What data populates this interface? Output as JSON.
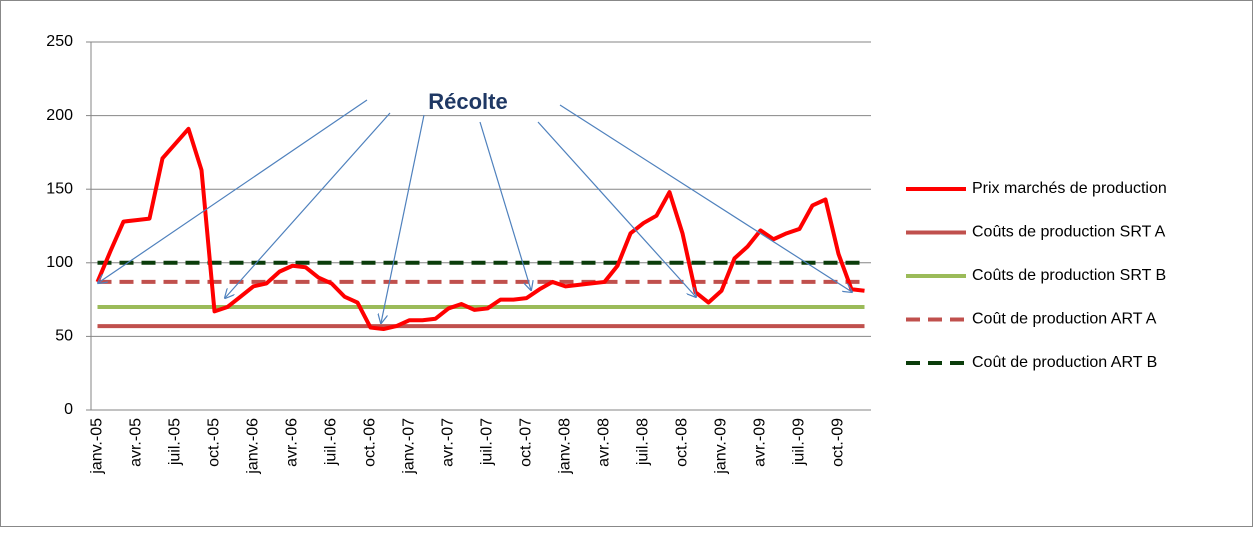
{
  "chart_data": {
    "type": "line",
    "annotation": "Récolte",
    "categories": [
      "janv.-05",
      null,
      null,
      "avr.-05",
      null,
      null,
      "juil.-05",
      null,
      null,
      "oct.-05",
      null,
      null,
      "janv.-06",
      null,
      null,
      "avr.-06",
      null,
      null,
      "juil.-06",
      null,
      null,
      "oct.-06",
      null,
      null,
      "janv.-07",
      null,
      null,
      "avr.-07",
      null,
      null,
      "juil.-07",
      null,
      null,
      "oct.-07",
      null,
      null,
      "janv.-08",
      null,
      null,
      "avr.-08",
      null,
      null,
      "juil.-08",
      null,
      null,
      "oct.-08",
      null,
      null,
      "janv.-09",
      null,
      null,
      "avr.-09",
      null,
      null,
      "juil.-09",
      null,
      null,
      "oct.-09",
      null,
      null
    ],
    "ylim": [
      0,
      250
    ],
    "yticks": [
      0,
      50,
      100,
      150,
      200,
      250
    ],
    "grid": true,
    "legend": "right",
    "series": [
      {
        "name": "Prix marchés de production",
        "color": "#ff0000",
        "style": "solid",
        "values": [
          87,
          108,
          128,
          129,
          130,
          171,
          181,
          191,
          163,
          67,
          70,
          77,
          84,
          86,
          94,
          98,
          97,
          90,
          86,
          77,
          73,
          56,
          55,
          57,
          61,
          61,
          62,
          69,
          72,
          68,
          69,
          75,
          75,
          76,
          82,
          87,
          84,
          85,
          86,
          87,
          98,
          120,
          127,
          132,
          148,
          120,
          80,
          73,
          81,
          103,
          111,
          122,
          116,
          120,
          123,
          139,
          143,
          106,
          82,
          81
        ]
      },
      {
        "name": "Coûts de production SRT A",
        "color": "#c0504d",
        "style": "solid",
        "values": [
          57,
          57,
          57,
          57,
          57,
          57,
          57,
          57,
          57,
          57,
          57,
          57,
          57,
          57,
          57,
          57,
          57,
          57,
          57,
          57,
          57,
          57,
          57,
          57,
          57,
          57,
          57,
          57,
          57,
          57,
          57,
          57,
          57,
          57,
          57,
          57,
          57,
          57,
          57,
          57,
          57,
          57,
          57,
          57,
          57,
          57,
          57,
          57,
          57,
          57,
          57,
          57,
          57,
          57,
          57,
          57,
          57,
          57,
          57,
          57
        ]
      },
      {
        "name": "Coûts de production SRT B",
        "color": "#9bbb59",
        "style": "solid",
        "values": [
          70,
          70,
          70,
          70,
          70,
          70,
          70,
          70,
          70,
          70,
          70,
          70,
          70,
          70,
          70,
          70,
          70,
          70,
          70,
          70,
          70,
          70,
          70,
          70,
          70,
          70,
          70,
          70,
          70,
          70,
          70,
          70,
          70,
          70,
          70,
          70,
          70,
          70,
          70,
          70,
          70,
          70,
          70,
          70,
          70,
          70,
          70,
          70,
          70,
          70,
          70,
          70,
          70,
          70,
          70,
          70,
          70,
          70,
          70,
          70
        ]
      },
      {
        "name": "Coût de production ART A",
        "color": "#c0504d",
        "style": "dashed",
        "values": [
          87,
          87,
          87,
          87,
          87,
          87,
          87,
          87,
          87,
          87,
          87,
          87,
          87,
          87,
          87,
          87,
          87,
          87,
          87,
          87,
          87,
          87,
          87,
          87,
          87,
          87,
          87,
          87,
          87,
          87,
          87,
          87,
          87,
          87,
          87,
          87,
          87,
          87,
          87,
          87,
          87,
          87,
          87,
          87,
          87,
          87,
          87,
          87,
          87,
          87,
          87,
          87,
          87,
          87,
          87,
          87,
          87,
          87,
          87,
          87
        ]
      },
      {
        "name": "Coût de production ART B",
        "color": "#0b3d0b",
        "style": "dashed",
        "values": [
          100,
          100,
          100,
          100,
          100,
          100,
          100,
          100,
          100,
          100,
          100,
          100,
          100,
          100,
          100,
          100,
          100,
          100,
          100,
          100,
          100,
          100,
          100,
          100,
          100,
          100,
          100,
          100,
          100,
          100,
          100,
          100,
          100,
          100,
          100,
          100,
          100,
          100,
          100,
          100,
          100,
          100,
          100,
          100,
          100,
          100,
          100,
          100,
          100,
          100,
          100,
          100,
          100,
          100,
          100,
          100,
          100,
          100,
          100,
          100
        ]
      }
    ]
  }
}
